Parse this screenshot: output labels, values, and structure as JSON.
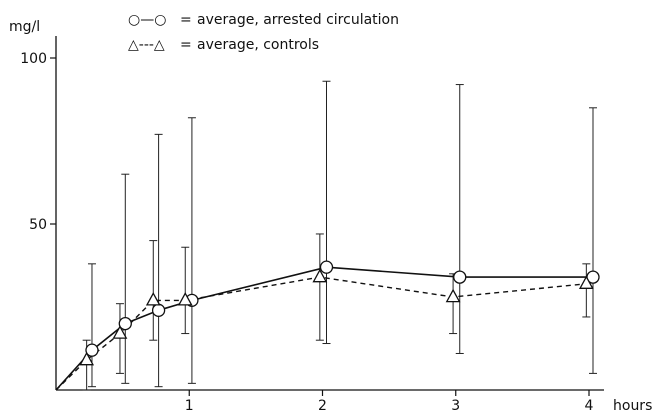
{
  "chart_data": {
    "type": "line",
    "title": "",
    "ylabel": "mg/l",
    "xlabel": "hours",
    "xlim": [
      0,
      4.5
    ],
    "ylim": [
      0,
      100
    ],
    "x_ticks": [
      1,
      2,
      3,
      4
    ],
    "y_ticks": [
      50,
      100
    ],
    "grid": false,
    "legend_placement": "top",
    "legend": {
      "series_a_symbol": "○—○",
      "series_a_eq": "=",
      "series_a_label": "average, arrested  circulation",
      "series_b_symbol": "△---△",
      "series_b_eq": "=",
      "series_b_label": "average, controls"
    },
    "series": [
      {
        "key": "arrested",
        "marker": "circle",
        "line": "solid",
        "points": [
          {
            "x": 0,
            "y": 0
          },
          {
            "x": 0.27,
            "y": 12,
            "low": 1,
            "high": 38
          },
          {
            "x": 0.52,
            "y": 20,
            "low": 2,
            "high": 65
          },
          {
            "x": 0.77,
            "y": 24,
            "low": 1,
            "high": 77
          },
          {
            "x": 1.02,
            "y": 27,
            "low": 2,
            "high": 82
          },
          {
            "x": 2.03,
            "y": 37,
            "low": 14,
            "high": 93
          },
          {
            "x": 3.03,
            "y": 34,
            "low": 11,
            "high": 92
          },
          {
            "x": 4.03,
            "y": 34,
            "low": 5,
            "high": 85
          }
        ]
      },
      {
        "key": "controls",
        "marker": "triangle",
        "line": "dashed",
        "points": [
          {
            "x": 0,
            "y": 0
          },
          {
            "x": 0.23,
            "y": 9,
            "low": 0,
            "high": 15
          },
          {
            "x": 0.48,
            "y": 17,
            "low": 5,
            "high": 26
          },
          {
            "x": 0.73,
            "y": 27,
            "low": 15,
            "high": 45
          },
          {
            "x": 0.97,
            "y": 27,
            "low": 17,
            "high": 43
          },
          {
            "x": 1.98,
            "y": 34,
            "low": 15,
            "high": 47
          },
          {
            "x": 2.98,
            "y": 28,
            "low": 17,
            "high": 35
          },
          {
            "x": 3.98,
            "y": 32,
            "low": 22,
            "high": 38
          }
        ]
      }
    ]
  }
}
